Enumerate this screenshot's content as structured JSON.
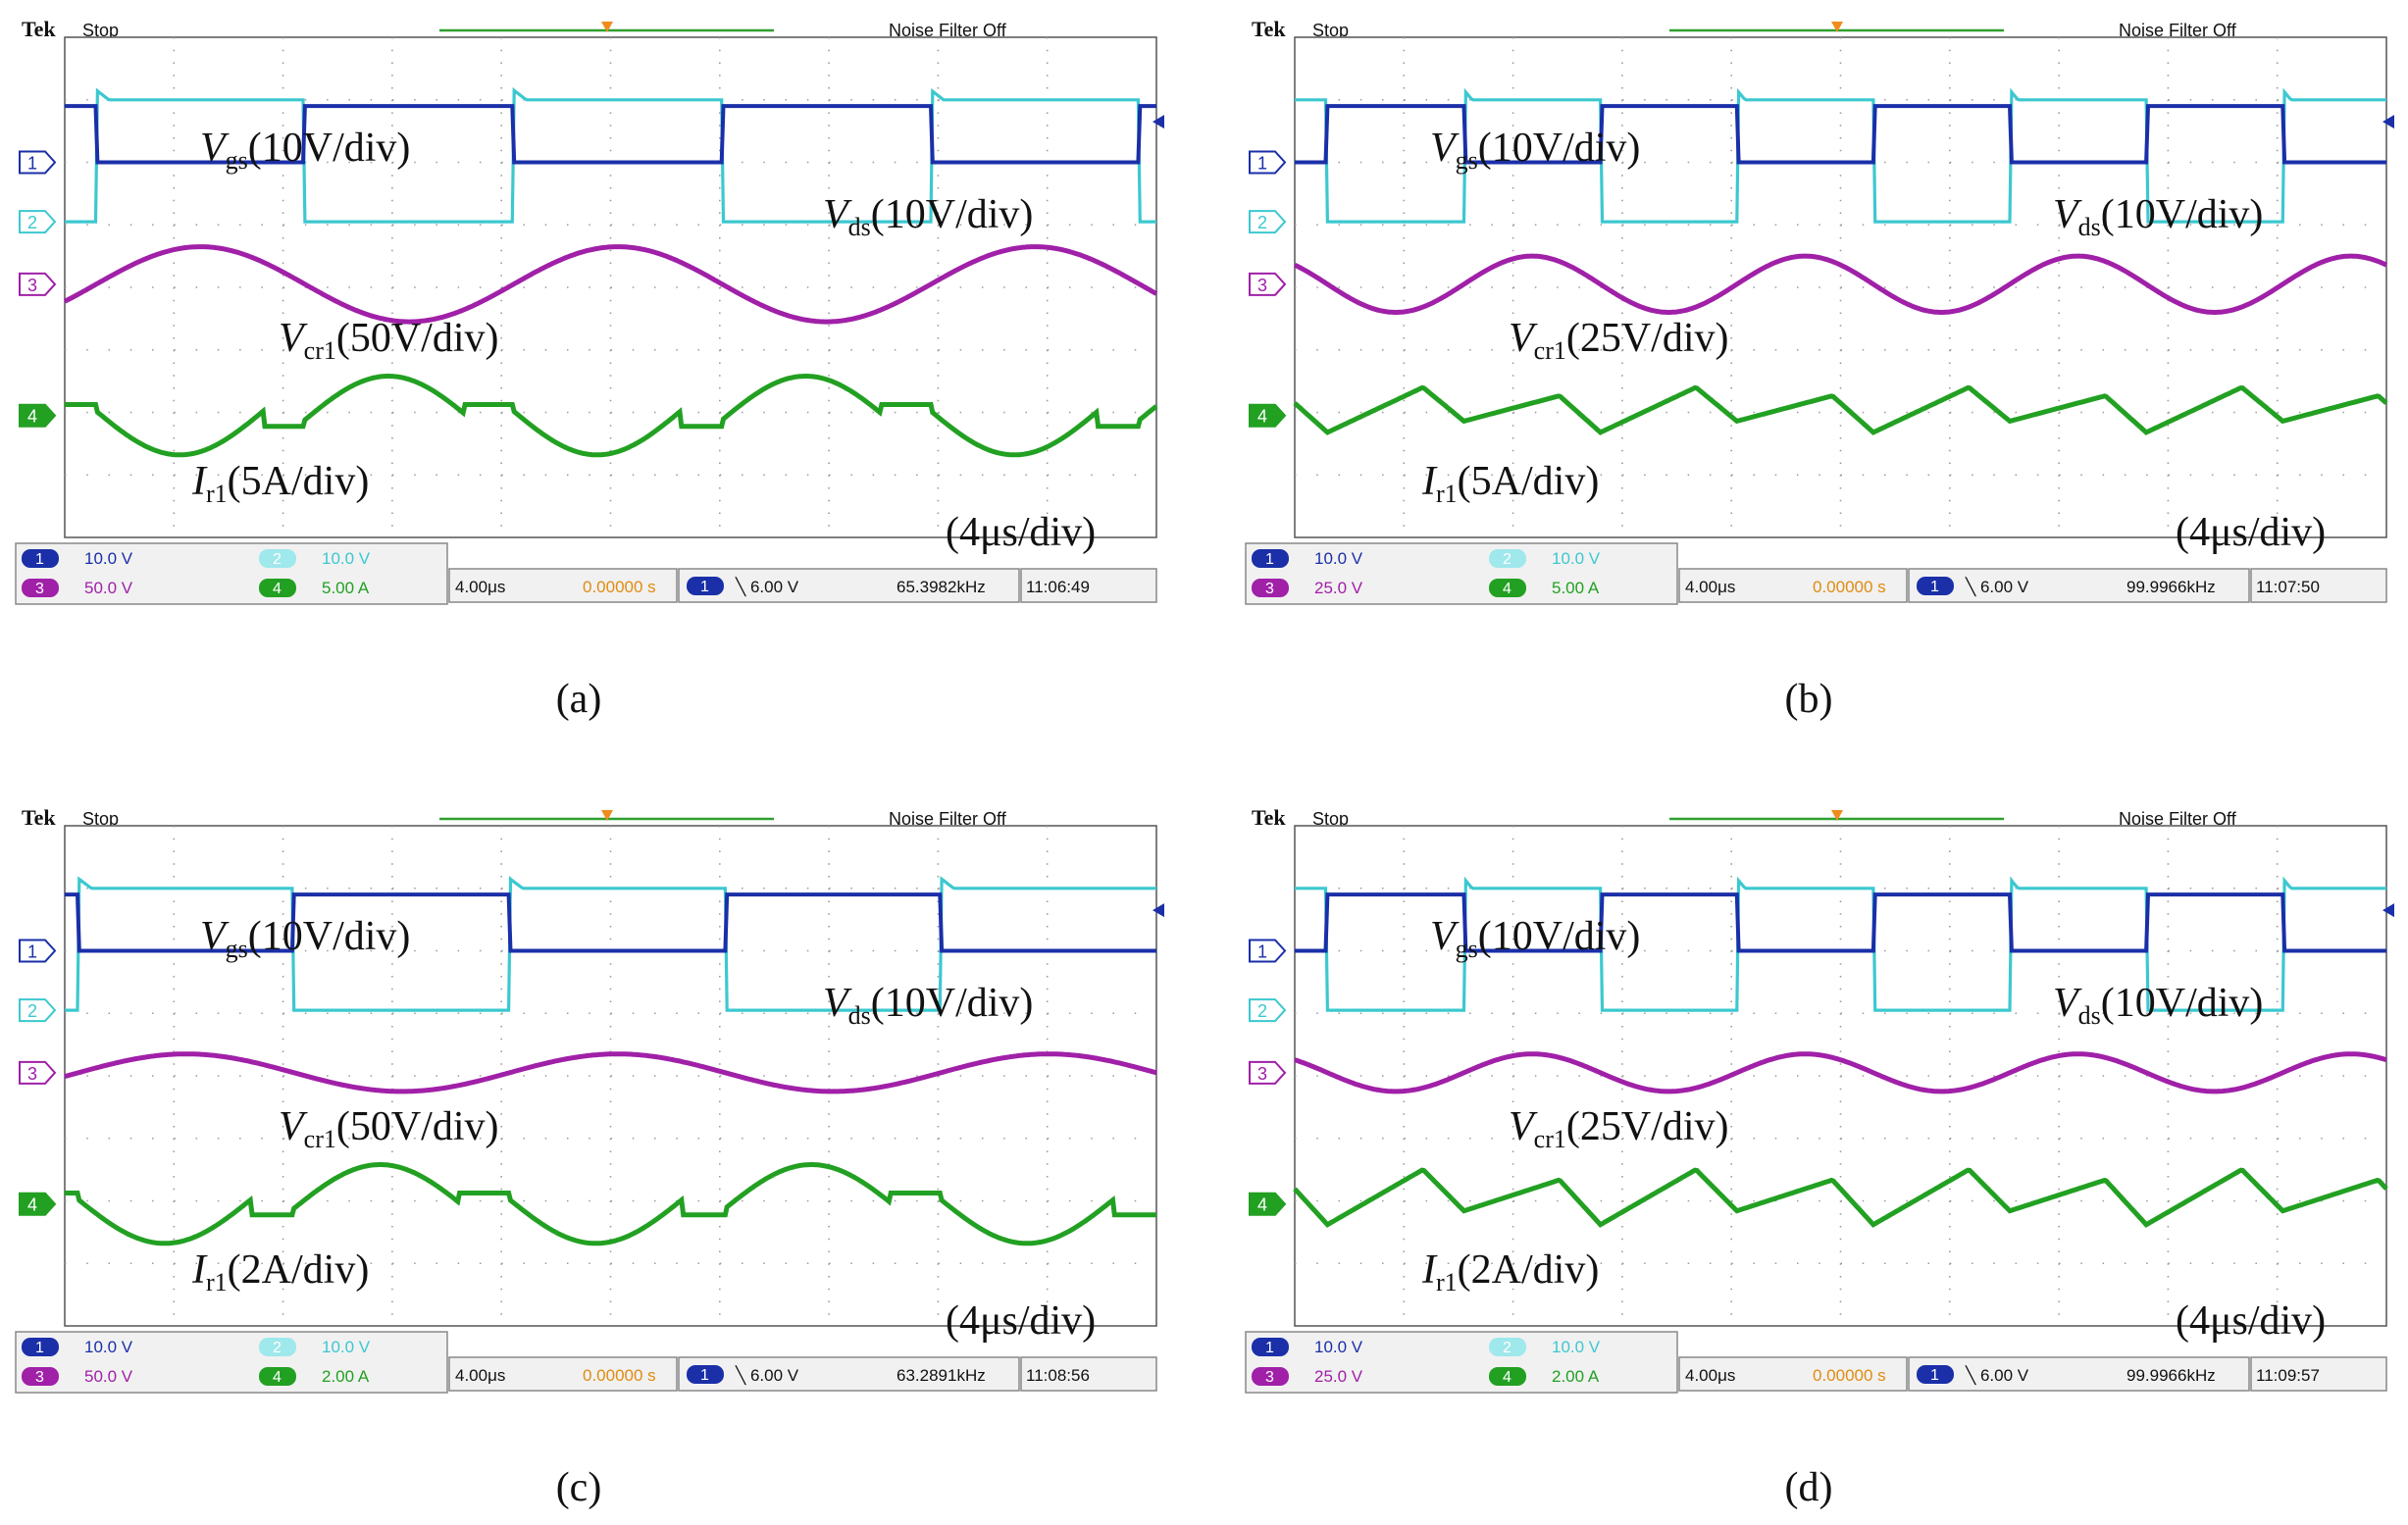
{
  "panels": [
    {
      "id": "a",
      "caption": "(a)",
      "header": {
        "brand": "Tek",
        "state": "Stop",
        "noise": "Noise Filter Off"
      },
      "labels": {
        "vgs": {
          "main": "V",
          "sub": "gs",
          "tail": "(10V/div)"
        },
        "vds": {
          "main": "V",
          "sub": "ds",
          "tail": "(10V/div)"
        },
        "vcr": {
          "main": "V",
          "sub": "cr1",
          "tail": "(50V/div)"
        },
        "ir": {
          "main": "I",
          "sub": "r1",
          "tail": "(5A/div)"
        },
        "time": "(4μs/div)"
      },
      "channels": [
        {
          "num": "1",
          "scale": "10.0 V",
          "color": "#1a2fa8"
        },
        {
          "num": "2",
          "scale": "10.0 V",
          "color": "#3cc8d0"
        },
        {
          "num": "3",
          "scale": "50.0 V",
          "color": "#a020a8"
        },
        {
          "num": "4",
          "scale": "5.00 A",
          "color": "#22a022"
        }
      ],
      "status": {
        "timebase": "4.00μs",
        "delay": "0.00000 s",
        "trig_ch": "1",
        "trigger": "╲ 6.00 V",
        "freq": "65.3982kHz",
        "clock": "11:06:49"
      },
      "wave": {
        "freq_khz": 65.3982,
        "phase_div": 2.2,
        "vcr_amp_div": 0.6,
        "ir_amp_div": 0.7,
        "ir_shape": "flat-top"
      }
    },
    {
      "id": "b",
      "caption": "(b)",
      "header": {
        "brand": "Tek",
        "state": "Stop",
        "noise": "Noise Filter Off"
      },
      "labels": {
        "vgs": {
          "main": "V",
          "sub": "gs",
          "tail": "(10V/div)"
        },
        "vds": {
          "main": "V",
          "sub": "ds",
          "tail": "(10V/div)"
        },
        "vcr": {
          "main": "V",
          "sub": "cr1",
          "tail": "(25V/div)"
        },
        "ir": {
          "main": "I",
          "sub": "r1",
          "tail": "(5A/div)"
        },
        "time": "(4μs/div)"
      },
      "channels": [
        {
          "num": "1",
          "scale": "10.0 V",
          "color": "#1a2fa8"
        },
        {
          "num": "2",
          "scale": "10.0 V",
          "color": "#3cc8d0"
        },
        {
          "num": "3",
          "scale": "25.0 V",
          "color": "#a020a8"
        },
        {
          "num": "4",
          "scale": "5.00 A",
          "color": "#22a022"
        }
      ],
      "status": {
        "timebase": "4.00μs",
        "delay": "0.00000 s",
        "trig_ch": "1",
        "trigger": "╲ 6.00 V",
        "freq": "99.9966kHz",
        "clock": "11:07:50"
      },
      "wave": {
        "freq_khz": 99.9966,
        "phase_div": 0.3,
        "vcr_amp_div": 0.45,
        "ir_amp_div": 0.45,
        "ir_shape": "triangle"
      }
    },
    {
      "id": "c",
      "caption": "(c)",
      "header": {
        "brand": "Tek",
        "state": "Stop",
        "noise": "Noise Filter Off"
      },
      "labels": {
        "vgs": {
          "main": "V",
          "sub": "gs",
          "tail": "(10V/div)"
        },
        "vds": {
          "main": "V",
          "sub": "ds",
          "tail": "(10V/div)"
        },
        "vcr": {
          "main": "V",
          "sub": "cr1",
          "tail": "(50V/div)"
        },
        "ir": {
          "main": "I",
          "sub": "r1",
          "tail": "(2A/div)"
        },
        "time": "(4μs/div)"
      },
      "channels": [
        {
          "num": "1",
          "scale": "10.0 V",
          "color": "#1a2fa8"
        },
        {
          "num": "2",
          "scale": "10.0 V",
          "color": "#3cc8d0"
        },
        {
          "num": "3",
          "scale": "50.0 V",
          "color": "#a020a8"
        },
        {
          "num": "4",
          "scale": "2.00 A",
          "color": "#22a022"
        }
      ],
      "status": {
        "timebase": "4.00μs",
        "delay": "0.00000 s",
        "trig_ch": "1",
        "trigger": "╲ 6.00 V",
        "freq": "63.2891kHz",
        "clock": "11:08:56"
      },
      "wave": {
        "freq_khz": 63.2891,
        "phase_div": 2.1,
        "vcr_amp_div": 0.3,
        "ir_amp_div": 0.7,
        "ir_shape": "flat-top"
      }
    },
    {
      "id": "d",
      "caption": "(d)",
      "header": {
        "brand": "Tek",
        "state": "Stop",
        "noise": "Noise Filter Off"
      },
      "labels": {
        "vgs": {
          "main": "V",
          "sub": "gs",
          "tail": "(10V/div)"
        },
        "vds": {
          "main": "V",
          "sub": "ds",
          "tail": "(10V/div)"
        },
        "vcr": {
          "main": "V",
          "sub": "cr1",
          "tail": "(25V/div)"
        },
        "ir": {
          "main": "I",
          "sub": "r1",
          "tail": "(2A/div)"
        },
        "time": "(4μs/div)"
      },
      "channels": [
        {
          "num": "1",
          "scale": "10.0 V",
          "color": "#1a2fa8"
        },
        {
          "num": "2",
          "scale": "10.0 V",
          "color": "#3cc8d0"
        },
        {
          "num": "3",
          "scale": "25.0 V",
          "color": "#a020a8"
        },
        {
          "num": "4",
          "scale": "2.00 A",
          "color": "#22a022"
        }
      ],
      "status": {
        "timebase": "4.00μs",
        "delay": "0.00000 s",
        "trig_ch": "1",
        "trigger": "╲ 6.00 V",
        "freq": "99.9966kHz",
        "clock": "11:09:57"
      },
      "wave": {
        "freq_khz": 99.9966,
        "phase_div": 0.3,
        "vcr_amp_div": 0.3,
        "ir_amp_div": 0.55,
        "ir_shape": "triangle"
      }
    }
  ],
  "chart_data": [
    {
      "type": "line",
      "title": "(a)",
      "xlabel": "(4μs/div)",
      "series": [
        {
          "name": "Vgs",
          "scale": "10V/div",
          "waveform": "square",
          "frequency_kHz": 65.3982
        },
        {
          "name": "Vds",
          "scale": "10V/div",
          "waveform": "square (complementary)",
          "frequency_kHz": 65.3982
        },
        {
          "name": "Vcr1",
          "scale": "50V/div",
          "waveform": "sinusoidal",
          "frequency_kHz": 65.3982
        },
        {
          "name": "Ir1",
          "scale": "5A/div",
          "waveform": "sinusoidal with flat segments",
          "frequency_kHz": 65.3982
        }
      ]
    },
    {
      "type": "line",
      "title": "(b)",
      "xlabel": "(4μs/div)",
      "series": [
        {
          "name": "Vgs",
          "scale": "10V/div",
          "waveform": "square",
          "frequency_kHz": 99.9966
        },
        {
          "name": "Vds",
          "scale": "10V/div",
          "waveform": "square (complementary)",
          "frequency_kHz": 99.9966
        },
        {
          "name": "Vcr1",
          "scale": "25V/div",
          "waveform": "sinusoidal",
          "frequency_kHz": 99.9966
        },
        {
          "name": "Ir1",
          "scale": "5A/div",
          "waveform": "triangular",
          "frequency_kHz": 99.9966
        }
      ]
    },
    {
      "type": "line",
      "title": "(c)",
      "xlabel": "(4μs/div)",
      "series": [
        {
          "name": "Vgs",
          "scale": "10V/div",
          "waveform": "square",
          "frequency_kHz": 63.2891
        },
        {
          "name": "Vds",
          "scale": "10V/div",
          "waveform": "square (complementary)",
          "frequency_kHz": 63.2891
        },
        {
          "name": "Vcr1",
          "scale": "50V/div",
          "waveform": "sinusoidal",
          "frequency_kHz": 63.2891
        },
        {
          "name": "Ir1",
          "scale": "2A/div",
          "waveform": "sinusoidal with flat segments",
          "frequency_kHz": 63.2891
        }
      ]
    },
    {
      "type": "line",
      "title": "(d)",
      "xlabel": "(4μs/div)",
      "series": [
        {
          "name": "Vgs",
          "scale": "10V/div",
          "waveform": "square",
          "frequency_kHz": 99.9966
        },
        {
          "name": "Vds",
          "scale": "10V/div",
          "waveform": "square (complementary)",
          "frequency_kHz": 99.9966
        },
        {
          "name": "Vcr1",
          "scale": "25V/div",
          "waveform": "sinusoidal",
          "frequency_kHz": 99.9966
        },
        {
          "name": "Ir1",
          "scale": "2A/div",
          "waveform": "triangular",
          "frequency_kHz": 99.9966
        }
      ]
    }
  ]
}
